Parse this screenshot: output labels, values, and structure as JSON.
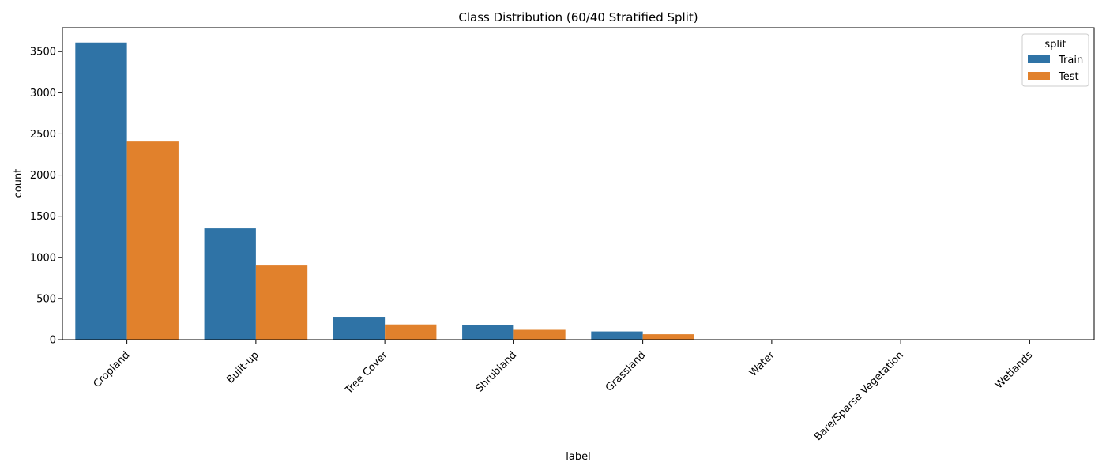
{
  "chart_data": {
    "type": "bar",
    "title": "Class Distribution (60/40 Stratified Split)",
    "xlabel": "label",
    "ylabel": "count",
    "ylim": [
      0,
      3790
    ],
    "yticks": [
      0,
      500,
      1000,
      1500,
      2000,
      2500,
      3000,
      3500
    ],
    "categories": [
      "Cropland",
      "Built-up",
      "Tree Cover",
      "Shrubland",
      "Grassland",
      "Water",
      "Bare/Sparse Vegetation",
      "Wetlands"
    ],
    "series": [
      {
        "name": "Train",
        "color": "#2f73a6",
        "values": [
          3610,
          1352,
          278,
          180,
          100,
          2,
          1,
          1
        ]
      },
      {
        "name": "Test",
        "color": "#e1812c",
        "values": [
          2407,
          901,
          185,
          120,
          66,
          1,
          1,
          0
        ]
      }
    ],
    "legend": {
      "title": "split",
      "position": "top-right"
    },
    "grid": false,
    "x_tick_rotation": 45
  }
}
